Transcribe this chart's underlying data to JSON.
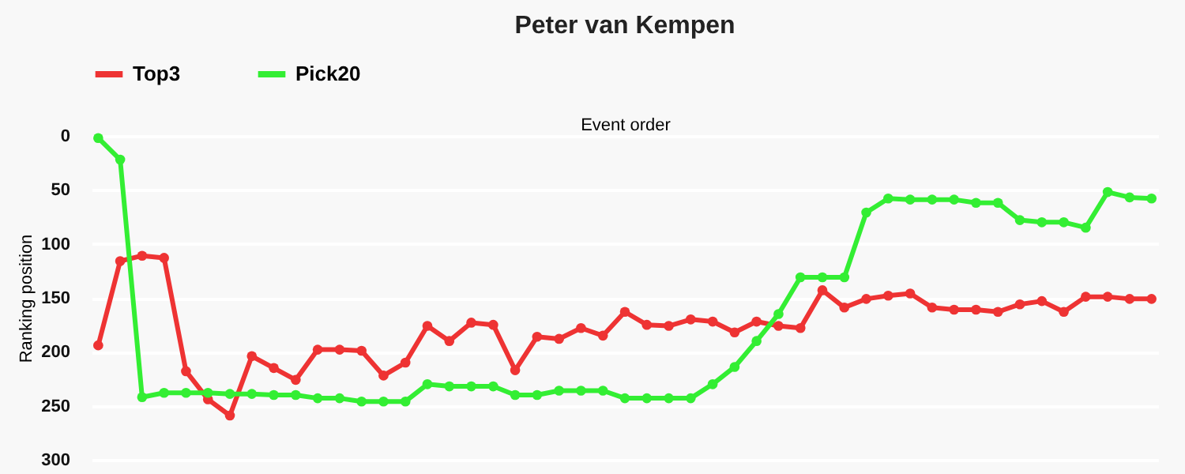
{
  "chart_data": {
    "type": "line",
    "title": "Peter van Kempen",
    "xlabel": "Event order",
    "ylabel": "Ranking position",
    "categories": [
      null,
      null,
      null,
      null,
      null,
      null,
      null,
      null,
      null,
      null,
      null,
      null,
      null,
      null,
      null,
      null,
      null,
      null,
      null,
      null,
      null,
      null,
      null,
      null,
      null,
      null,
      null,
      null,
      null,
      null,
      null,
      null,
      null,
      null,
      null,
      null,
      null,
      null,
      null,
      null,
      null,
      null,
      null,
      null,
      null,
      null,
      null,
      null,
      null
    ],
    "series": [
      {
        "name": "Top3",
        "color": "#ee3333",
        "values": [
          194,
          116,
          111,
          113,
          218,
          244,
          259,
          204,
          215,
          226,
          198,
          198,
          199,
          222,
          210,
          176,
          190,
          173,
          175,
          217,
          186,
          188,
          178,
          185,
          163,
          175,
          176,
          170,
          172,
          182,
          172,
          176,
          178,
          143,
          159,
          151,
          148,
          146,
          159,
          161,
          161,
          163,
          156,
          153,
          163,
          149,
          149,
          151,
          151
        ]
      },
      {
        "name": "Pick20",
        "color": "#33ee33",
        "values": [
          2,
          22,
          242,
          238,
          238,
          238,
          239,
          239,
          240,
          240,
          243,
          243,
          246,
          246,
          246,
          230,
          232,
          232,
          232,
          240,
          240,
          236,
          236,
          236,
          243,
          243,
          243,
          243,
          230,
          214,
          190,
          165,
          131,
          131,
          131,
          71,
          58,
          59,
          59,
          59,
          62,
          62,
          78,
          80,
          80,
          85,
          52,
          57,
          58
        ]
      }
    ],
    "ylim": [
      300,
      0
    ],
    "yticks": [
      0,
      50,
      100,
      150,
      200,
      250,
      300
    ],
    "grid": "y",
    "legend": "top",
    "marker": "circle",
    "line_style": "solid",
    "tick_labels": "y"
  }
}
